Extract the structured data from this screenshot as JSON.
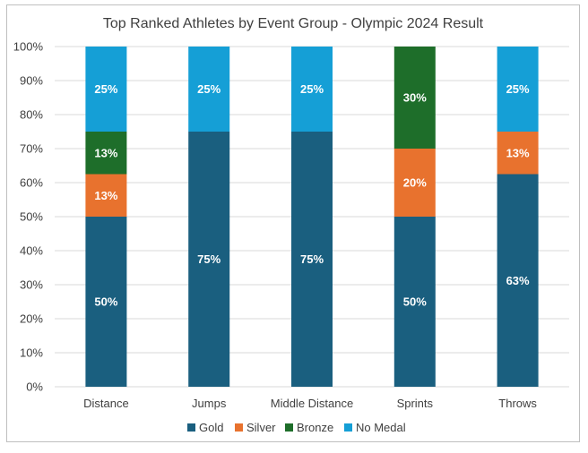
{
  "chart_data": {
    "type": "bar",
    "stacked": true,
    "title": "Top Ranked Athletes by Event Group - Olympic 2024 Result",
    "categories": [
      "Distance",
      "Jumps",
      "Middle Distance",
      "Sprints",
      "Throws"
    ],
    "series": [
      {
        "name": "Gold",
        "color": "#1a5f7f",
        "values": [
          50,
          75,
          75,
          50,
          62.5
        ],
        "labels": [
          "50%",
          "75%",
          "75%",
          "50%",
          "63%"
        ]
      },
      {
        "name": "Silver",
        "color": "#e8722e",
        "values": [
          12.5,
          0,
          0,
          20,
          12.5
        ],
        "labels": [
          "13%",
          "",
          "",
          "20%",
          "13%"
        ]
      },
      {
        "name": "Bronze",
        "color": "#1e6e2a",
        "values": [
          12.5,
          0,
          0,
          30,
          0
        ],
        "labels": [
          "13%",
          "",
          "",
          "30%",
          ""
        ]
      },
      {
        "name": "No Medal",
        "color": "#159fd6",
        "values": [
          25,
          25,
          25,
          0,
          25
        ],
        "labels": [
          "25%",
          "25%",
          "25%",
          "",
          "25%"
        ]
      }
    ],
    "ylim": [
      0,
      100
    ],
    "yticks": [
      "0%",
      "10%",
      "20%",
      "30%",
      "40%",
      "50%",
      "60%",
      "70%",
      "80%",
      "90%",
      "100%"
    ],
    "grid": true,
    "legend": "bottom"
  }
}
